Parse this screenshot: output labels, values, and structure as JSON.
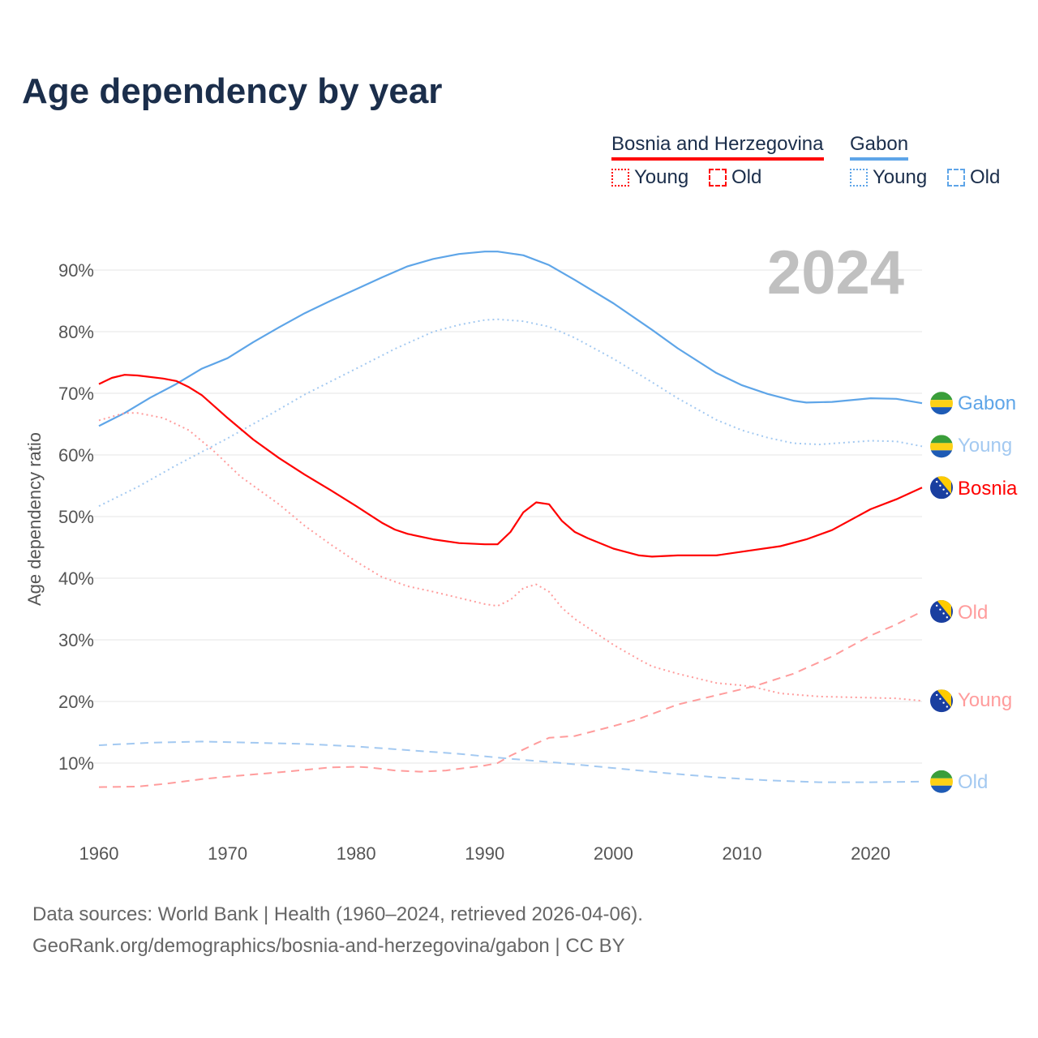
{
  "title": "Age dependency by year",
  "legend": {
    "countries": [
      {
        "name": "Bosnia and Herzegovina",
        "color": "#ff0000",
        "items": [
          "Young",
          "Old"
        ]
      },
      {
        "name": "Gabon",
        "color": "#5ea5e8",
        "items": [
          "Young",
          "Old"
        ]
      }
    ]
  },
  "year_label": "2024",
  "source": {
    "line1": "Data sources: World Bank | Health (1960–2024, retrieved 2026-04-06).",
    "line2": "GeoRank.org/demographics/bosnia-and-herzegovina/gabon | CC BY"
  },
  "chart_data": {
    "type": "line",
    "title": "Age dependency by year",
    "xlabel": "",
    "ylabel": "Age dependency ratio",
    "xlim": [
      1960,
      2024
    ],
    "ylim": [
      0,
      95
    ],
    "x_ticks": [
      "1960",
      "1970",
      "1980",
      "1990",
      "2000",
      "2010",
      "2020"
    ],
    "y_ticks": [
      "10%",
      "20%",
      "30%",
      "40%",
      "50%",
      "60%",
      "70%",
      "80%",
      "90%"
    ],
    "grid": true,
    "series": [
      {
        "name": "Gabon",
        "end_label": "Gabon",
        "color": "#5ea5e8",
        "style": "solid",
        "flag": "gabon",
        "points": [
          [
            1960,
            64.7
          ],
          [
            1962,
            66.8
          ],
          [
            1964,
            69.3
          ],
          [
            1966,
            71.5
          ],
          [
            1968,
            74
          ],
          [
            1970,
            75.7
          ],
          [
            1972,
            78.3
          ],
          [
            1974,
            80.7
          ],
          [
            1976,
            83
          ],
          [
            1978,
            85
          ],
          [
            1980,
            86.9
          ],
          [
            1982,
            88.8
          ],
          [
            1984,
            90.6
          ],
          [
            1986,
            91.8
          ],
          [
            1988,
            92.6
          ],
          [
            1990,
            93
          ],
          [
            1991,
            93
          ],
          [
            1993,
            92.4
          ],
          [
            1995,
            90.8
          ],
          [
            1997,
            88.4
          ],
          [
            2000,
            84.6
          ],
          [
            2003,
            80.3
          ],
          [
            2005,
            77.3
          ],
          [
            2008,
            73.3
          ],
          [
            2010,
            71.3
          ],
          [
            2012,
            69.9
          ],
          [
            2014,
            68.8
          ],
          [
            2015,
            68.5
          ],
          [
            2017,
            68.6
          ],
          [
            2020,
            69.2
          ],
          [
            2022,
            69.1
          ],
          [
            2024,
            68.4
          ]
        ]
      },
      {
        "name": "Gabon Young",
        "end_label": "Young",
        "color": "#a3c9f1",
        "style": "dotted",
        "flag": "gabon",
        "points": [
          [
            1960,
            51.7
          ],
          [
            1963,
            54.8
          ],
          [
            1966,
            58.3
          ],
          [
            1970,
            62.7
          ],
          [
            1973,
            66.2
          ],
          [
            1976,
            69.8
          ],
          [
            1980,
            74
          ],
          [
            1983,
            77.2
          ],
          [
            1986,
            80
          ],
          [
            1988,
            81.1
          ],
          [
            1990,
            81.9
          ],
          [
            1991,
            82
          ],
          [
            1993,
            81.7
          ],
          [
            1995,
            80.8
          ],
          [
            1997,
            79
          ],
          [
            2000,
            75.6
          ],
          [
            2003,
            71.8
          ],
          [
            2005,
            69.2
          ],
          [
            2008,
            65.7
          ],
          [
            2010,
            64
          ],
          [
            2012,
            62.8
          ],
          [
            2014,
            61.9
          ],
          [
            2016,
            61.7
          ],
          [
            2020,
            62.3
          ],
          [
            2022,
            62.2
          ],
          [
            2024,
            61.4
          ]
        ]
      },
      {
        "name": "Bosnia",
        "end_label": "Bosnia",
        "color": "#ff0000",
        "style": "solid",
        "flag": "bosnia",
        "points": [
          [
            1960,
            71.5
          ],
          [
            1961,
            72.5
          ],
          [
            1962,
            73
          ],
          [
            1963,
            72.9
          ],
          [
            1965,
            72.4
          ],
          [
            1966,
            72
          ],
          [
            1967,
            71
          ],
          [
            1968,
            69.7
          ],
          [
            1970,
            66
          ],
          [
            1972,
            62.5
          ],
          [
            1974,
            59.5
          ],
          [
            1976,
            56.8
          ],
          [
            1978,
            54.3
          ],
          [
            1980,
            51.7
          ],
          [
            1982,
            49
          ],
          [
            1983,
            47.9
          ],
          [
            1984,
            47.2
          ],
          [
            1986,
            46.3
          ],
          [
            1988,
            45.7
          ],
          [
            1990,
            45.5
          ],
          [
            1991,
            45.5
          ],
          [
            1992,
            47.5
          ],
          [
            1993,
            50.7
          ],
          [
            1994,
            52.3
          ],
          [
            1995,
            52
          ],
          [
            1996,
            49.3
          ],
          [
            1997,
            47.5
          ],
          [
            1998,
            46.5
          ],
          [
            2000,
            44.8
          ],
          [
            2002,
            43.7
          ],
          [
            2003,
            43.5
          ],
          [
            2005,
            43.7
          ],
          [
            2008,
            43.7
          ],
          [
            2010,
            44.3
          ],
          [
            2013,
            45.2
          ],
          [
            2015,
            46.3
          ],
          [
            2017,
            47.8
          ],
          [
            2020,
            51.2
          ],
          [
            2022,
            52.8
          ],
          [
            2024,
            54.7
          ]
        ]
      },
      {
        "name": "Bosnia Old",
        "end_label": "Old",
        "color": "#ff9c9c",
        "style": "dashed",
        "flag": "bosnia",
        "points": [
          [
            1960,
            6.1
          ],
          [
            1963,
            6.2
          ],
          [
            1965,
            6.6
          ],
          [
            1968,
            7.4
          ],
          [
            1970,
            7.8
          ],
          [
            1974,
            8.5
          ],
          [
            1978,
            9.3
          ],
          [
            1980,
            9.4
          ],
          [
            1981,
            9.3
          ],
          [
            1983,
            8.8
          ],
          [
            1985,
            8.6
          ],
          [
            1987,
            8.8
          ],
          [
            1990,
            9.6
          ],
          [
            1991,
            10
          ],
          [
            1992,
            11.2
          ],
          [
            1994,
            13.2
          ],
          [
            1995,
            14.1
          ],
          [
            1997,
            14.4
          ],
          [
            2000,
            16
          ],
          [
            2002,
            17.2
          ],
          [
            2005,
            19.5
          ],
          [
            2008,
            21
          ],
          [
            2011,
            22.5
          ],
          [
            2014,
            24.5
          ],
          [
            2017,
            27.3
          ],
          [
            2020,
            30.7
          ],
          [
            2022,
            32.5
          ],
          [
            2024,
            34.6
          ]
        ]
      },
      {
        "name": "Bosnia Young",
        "end_label": "Young",
        "color": "#ff9c9c",
        "style": "dotted",
        "flag": "bosnia",
        "points": [
          [
            1960,
            65.6
          ],
          [
            1962,
            66.8
          ],
          [
            1963,
            66.8
          ],
          [
            1965,
            66
          ],
          [
            1967,
            64
          ],
          [
            1969,
            60.5
          ],
          [
            1971,
            56.5
          ],
          [
            1974,
            52
          ],
          [
            1976,
            48.5
          ],
          [
            1978,
            45.5
          ],
          [
            1980,
            42.7
          ],
          [
            1982,
            40.2
          ],
          [
            1984,
            38.7
          ],
          [
            1986,
            37.8
          ],
          [
            1988,
            36.8
          ],
          [
            1990,
            35.8
          ],
          [
            1991,
            35.5
          ],
          [
            1992,
            36.5
          ],
          [
            1993,
            38.4
          ],
          [
            1994,
            39
          ],
          [
            1995,
            37.8
          ],
          [
            1996,
            35.2
          ],
          [
            1997,
            33.4
          ],
          [
            2000,
            29.2
          ],
          [
            2002,
            26.8
          ],
          [
            2003,
            25.7
          ],
          [
            2005,
            24.5
          ],
          [
            2008,
            23
          ],
          [
            2010,
            22.6
          ],
          [
            2011,
            22.3
          ],
          [
            2013,
            21.3
          ],
          [
            2016,
            20.8
          ],
          [
            2020,
            20.6
          ],
          [
            2022,
            20.5
          ],
          [
            2024,
            20.1
          ]
        ]
      },
      {
        "name": "Gabon Old",
        "end_label": "Old",
        "color": "#a3c9f1",
        "style": "dashed",
        "flag": "gabon",
        "points": [
          [
            1960,
            12.9
          ],
          [
            1964,
            13.3
          ],
          [
            1968,
            13.5
          ],
          [
            1972,
            13.3
          ],
          [
            1976,
            13.1
          ],
          [
            1980,
            12.7
          ],
          [
            1984,
            12.1
          ],
          [
            1988,
            11.5
          ],
          [
            1992,
            10.7
          ],
          [
            1996,
            10
          ],
          [
            2000,
            9.2
          ],
          [
            2004,
            8.4
          ],
          [
            2008,
            7.7
          ],
          [
            2012,
            7.2
          ],
          [
            2016,
            6.9
          ],
          [
            2020,
            6.9
          ],
          [
            2024,
            7.0
          ]
        ]
      }
    ]
  }
}
